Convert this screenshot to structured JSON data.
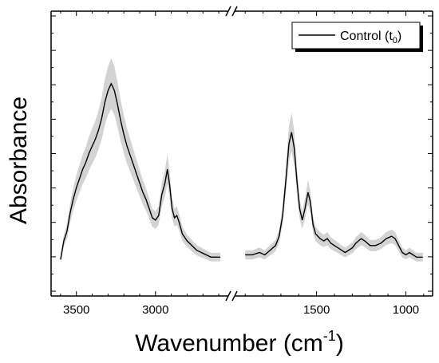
{
  "chart_data": {
    "type": "line",
    "title": "",
    "xlabel": "Wavenumber (cm",
    "xlabel_sup": "-1",
    "xlabel_end": ")",
    "ylabel": "Absorbance",
    "x_axis_reversed": true,
    "x_axis_broken": true,
    "x_segments": [
      {
        "range": [
          3660,
          2550
        ],
        "ticks": [
          3500,
          3000
        ],
        "tick_labels": [
          "3500",
          "3000"
        ]
      },
      {
        "range": [
          1950,
          850
        ],
        "ticks": [
          1500,
          1000
        ],
        "tick_labels": [
          "1500",
          "1000"
        ]
      }
    ],
    "y_ticks_labeled": false,
    "y_range": [
      0,
      1
    ],
    "legend": {
      "position": "top-right",
      "label_main": "Control (t",
      "label_sub": "0",
      "label_end": ")"
    },
    "series": [
      {
        "name": "Control (t0)",
        "color": "#000000",
        "band_color": "#c8c8c8",
        "segments": [
          [
            [
              3600,
              0.02
            ],
            [
              3580,
              0.1
            ],
            [
              3560,
              0.14
            ],
            [
              3540,
              0.22
            ],
            [
              3520,
              0.28
            ],
            [
              3500,
              0.33
            ],
            [
              3480,
              0.37
            ],
            [
              3460,
              0.41
            ],
            [
              3440,
              0.44
            ],
            [
              3420,
              0.48
            ],
            [
              3400,
              0.51
            ],
            [
              3380,
              0.54
            ],
            [
              3360,
              0.58
            ],
            [
              3340,
              0.63
            ],
            [
              3320,
              0.7
            ],
            [
              3300,
              0.75
            ],
            [
              3280,
              0.78
            ],
            [
              3260,
              0.75
            ],
            [
              3240,
              0.69
            ],
            [
              3220,
              0.62
            ],
            [
              3200,
              0.56
            ],
            [
              3180,
              0.51
            ],
            [
              3160,
              0.47
            ],
            [
              3140,
              0.43
            ],
            [
              3120,
              0.39
            ],
            [
              3100,
              0.35
            ],
            [
              3080,
              0.31
            ],
            [
              3060,
              0.28
            ],
            [
              3040,
              0.24
            ],
            [
              3020,
              0.2
            ],
            [
              3000,
              0.19
            ],
            [
              2980,
              0.21
            ],
            [
              2960,
              0.3
            ],
            [
              2940,
              0.35
            ],
            [
              2925,
              0.41
            ],
            [
              2910,
              0.34
            ],
            [
              2895,
              0.24
            ],
            [
              2880,
              0.2
            ],
            [
              2865,
              0.21
            ],
            [
              2850,
              0.18
            ],
            [
              2830,
              0.13
            ],
            [
              2800,
              0.1
            ],
            [
              2770,
              0.08
            ],
            [
              2740,
              0.06
            ],
            [
              2710,
              0.05
            ],
            [
              2680,
              0.04
            ],
            [
              2650,
              0.03
            ],
            [
              2620,
              0.03
            ],
            [
              2590,
              0.03
            ]
          ],
          [
            [
              1900,
              0.04
            ],
            [
              1860,
              0.04
            ],
            [
              1820,
              0.05
            ],
            [
              1790,
              0.04
            ],
            [
              1760,
              0.06
            ],
            [
              1730,
              0.08
            ],
            [
              1710,
              0.12
            ],
            [
              1690,
              0.21
            ],
            [
              1670,
              0.38
            ],
            [
              1655,
              0.52
            ],
            [
              1640,
              0.57
            ],
            [
              1625,
              0.5
            ],
            [
              1610,
              0.36
            ],
            [
              1595,
              0.24
            ],
            [
              1580,
              0.19
            ],
            [
              1565,
              0.24
            ],
            [
              1548,
              0.31
            ],
            [
              1535,
              0.27
            ],
            [
              1520,
              0.17
            ],
            [
              1505,
              0.13
            ],
            [
              1480,
              0.11
            ],
            [
              1460,
              0.1
            ],
            [
              1440,
              0.11
            ],
            [
              1420,
              0.09
            ],
            [
              1400,
              0.08
            ],
            [
              1380,
              0.07
            ],
            [
              1360,
              0.06
            ],
            [
              1340,
              0.05
            ],
            [
              1320,
              0.06
            ],
            [
              1300,
              0.07
            ],
            [
              1280,
              0.09
            ],
            [
              1250,
              0.11
            ],
            [
              1230,
              0.1
            ],
            [
              1200,
              0.08
            ],
            [
              1170,
              0.08
            ],
            [
              1140,
              0.09
            ],
            [
              1110,
              0.11
            ],
            [
              1080,
              0.12
            ],
            [
              1060,
              0.11
            ],
            [
              1040,
              0.08
            ],
            [
              1020,
              0.05
            ],
            [
              1000,
              0.04
            ],
            [
              980,
              0.05
            ],
            [
              960,
              0.04
            ],
            [
              940,
              0.03
            ],
            [
              920,
              0.03
            ],
            [
              905,
              0.03
            ]
          ]
        ]
      }
    ]
  }
}
